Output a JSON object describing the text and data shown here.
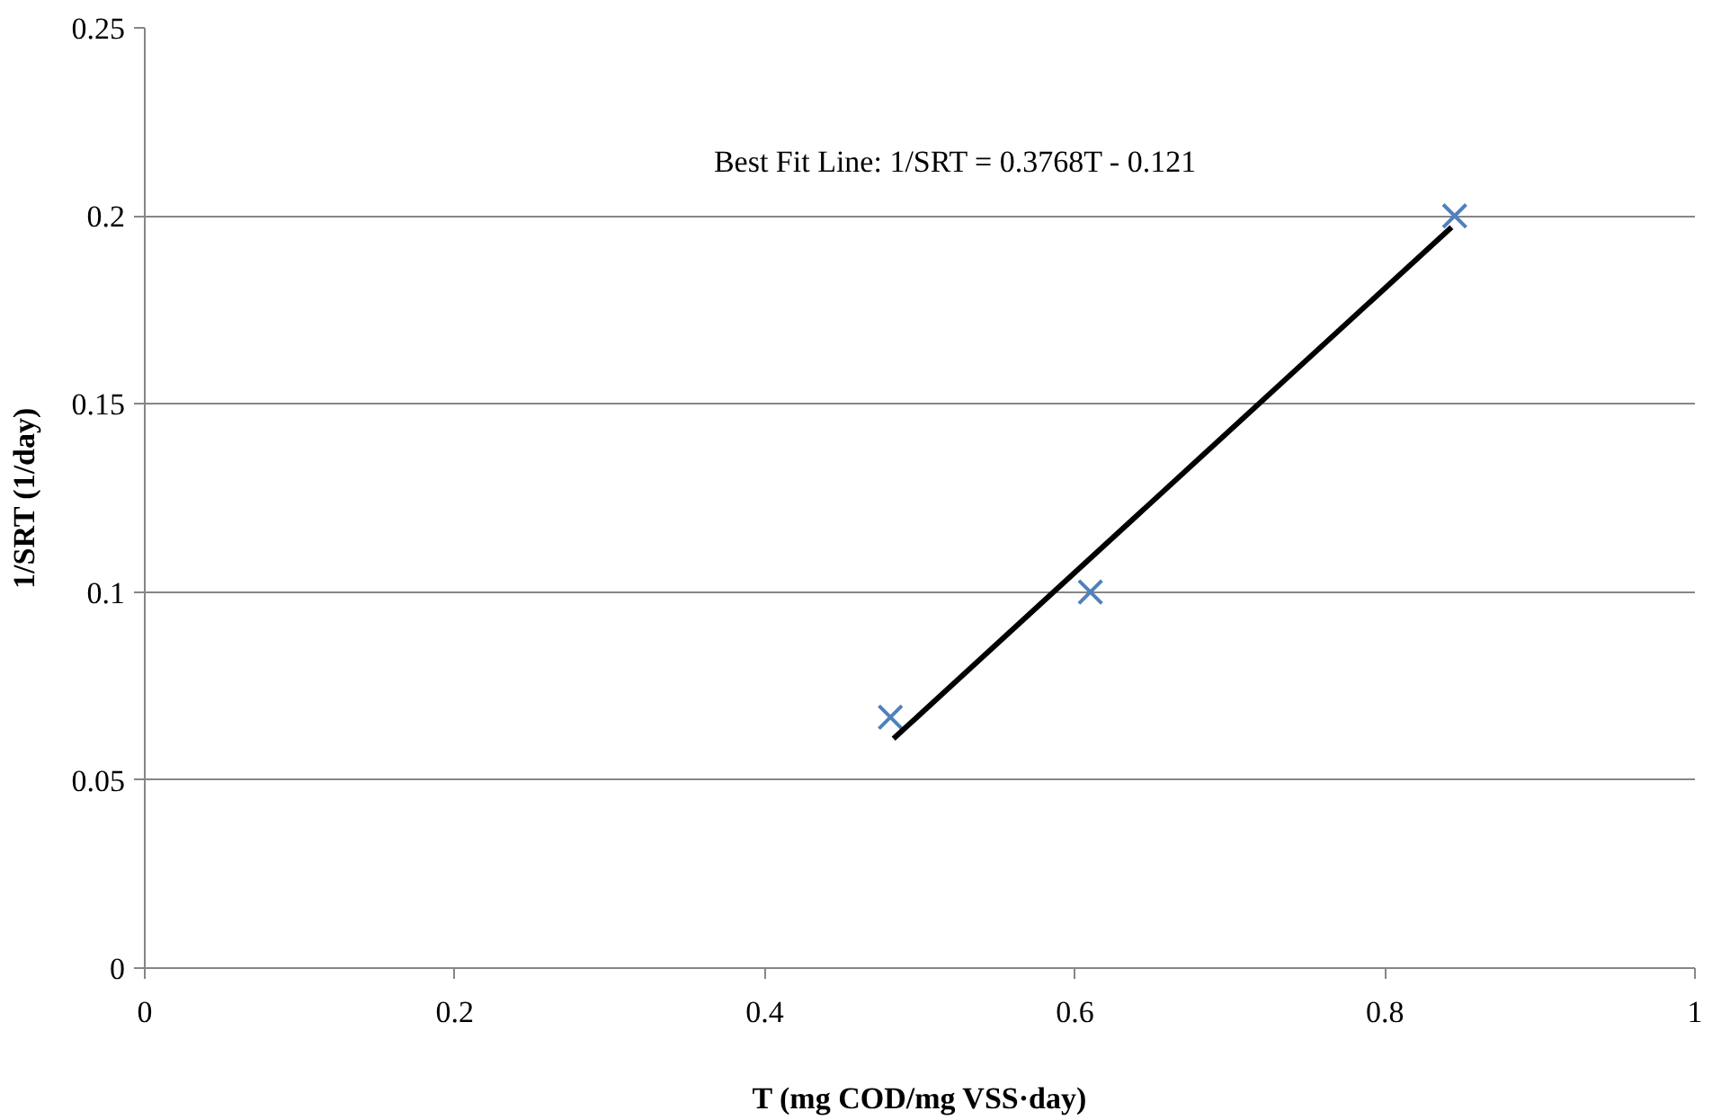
{
  "chart_data": {
    "type": "scatter",
    "xlabel": "T (mg COD/mg VSS·day)",
    "ylabel": "1/SRT (1/day)",
    "xlim": [
      0,
      1
    ],
    "xticks": [
      0,
      0.2,
      0.4,
      0.6,
      0.8,
      1
    ],
    "ylim": [
      0,
      0.25
    ],
    "yticks": [
      0,
      0.05,
      0.1,
      0.15,
      0.2,
      0.25
    ],
    "grid": "y",
    "series": [
      {
        "color": "#4f81bd",
        "marker": "cross",
        "x": [
          0.481,
          0.61,
          0.845
        ],
        "values": [
          0.0667,
          0.1,
          0.2
        ]
      },
      {
        "type": "line",
        "color": "#000000",
        "x": [
          0.483,
          0.843
        ],
        "values": [
          0.061,
          0.197
        ]
      }
    ],
    "annotations": [
      "Best Fit Line: 1/SRT = 0.3768T - 0.121"
    ]
  }
}
